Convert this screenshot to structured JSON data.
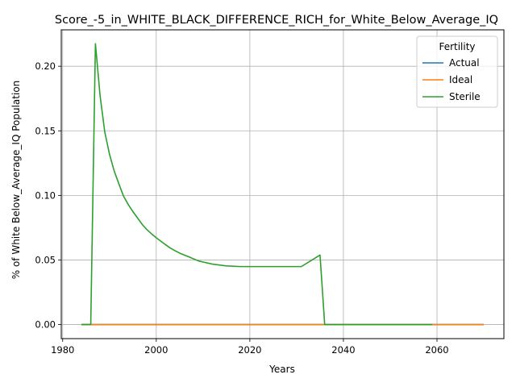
{
  "chart_data": {
    "type": "line",
    "title": "Score_-5_in_WHITE_BLACK_DIFFERENCE_RICH_for_White_Below_Average_IQ",
    "xlabel": "Years",
    "ylabel": "% of White Below_Average_IQ Population",
    "xlim": [
      1979.7,
      2074.3
    ],
    "ylim": [
      -0.0109,
      0.2282
    ],
    "xticks": [
      1980,
      2000,
      2020,
      2040,
      2060
    ],
    "xtick_labels": [
      "1980",
      "2000",
      "2020",
      "2040",
      "2060"
    ],
    "yticks": [
      0.0,
      0.05,
      0.1,
      0.15,
      0.2
    ],
    "ytick_labels": [
      "0.00",
      "0.05",
      "0.10",
      "0.15",
      "0.20"
    ],
    "grid": true,
    "legend": {
      "title": "Fertility",
      "placement": "top-right"
    },
    "series": [
      {
        "name": "Actual",
        "color": "#1f77b4",
        "x": [
          1984,
          2070
        ],
        "y": [
          0.0,
          0.0
        ]
      },
      {
        "name": "Ideal",
        "color": "#ff7f0e",
        "x": [
          1984,
          2070
        ],
        "y": [
          0.0,
          0.0
        ]
      },
      {
        "name": "Sterile",
        "color": "#2ca02c",
        "x": [
          1984,
          1986,
          1987,
          1988,
          1989,
          1990,
          1991,
          1992,
          1993,
          1994,
          1995,
          1996,
          1997,
          1998,
          1999,
          2000,
          2001,
          2002,
          2003,
          2004,
          2005,
          2006,
          2007,
          2008,
          2009,
          2010,
          2012,
          2015,
          2018,
          2021,
          2025,
          2028,
          2031,
          2035,
          2036,
          2045,
          2050,
          2059
        ],
        "y": [
          0.0,
          0.0,
          0.2175,
          0.177,
          0.149,
          0.132,
          0.119,
          0.109,
          0.0995,
          0.093,
          0.0875,
          0.0825,
          0.0775,
          0.0735,
          0.0702,
          0.0672,
          0.0645,
          0.0618,
          0.0592,
          0.0572,
          0.0553,
          0.0538,
          0.0524,
          0.0508,
          0.0493,
          0.0484,
          0.0468,
          0.0454,
          0.0449,
          0.0449,
          0.0449,
          0.0449,
          0.0449,
          0.0538,
          0.0,
          0.0,
          0.0,
          0.0
        ]
      }
    ]
  }
}
